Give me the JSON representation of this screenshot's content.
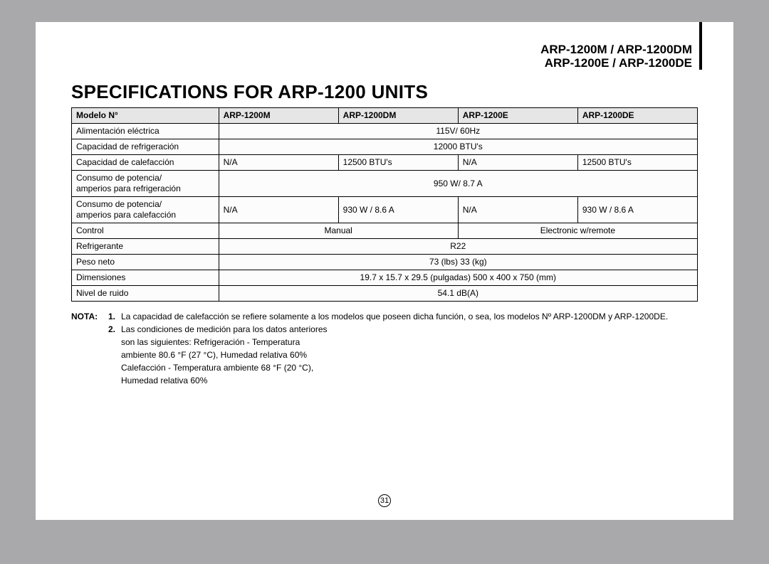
{
  "header": {
    "line1": "ARP-1200M / ARP-1200DM",
    "line2": "ARP-1200E / ARP-1200DE"
  },
  "title": "SPECIFICATIONS FOR ARP-1200 UNITS",
  "table": {
    "columns": [
      "Modelo N°",
      "ARP-1200M",
      "ARP-1200DM",
      "ARP-1200E",
      "ARP-1200DE"
    ],
    "rows": [
      {
        "label": "Alimentación eléctrica",
        "spans": [
          {
            "cols": 4,
            "text": "115V/ 60Hz",
            "align": "center"
          }
        ]
      },
      {
        "label": "Capacidad de refrigeración",
        "spans": [
          {
            "cols": 4,
            "text": "12000 BTU's",
            "align": "center"
          }
        ]
      },
      {
        "label": "Capacidad de calefacción",
        "spans": [
          {
            "cols": 1,
            "text": "N/A"
          },
          {
            "cols": 1,
            "text": "12500  BTU's"
          },
          {
            "cols": 1,
            "text": "N/A"
          },
          {
            "cols": 1,
            "text": "12500 BTU's"
          }
        ]
      },
      {
        "label": "Consumo de potencia/\namperios para refrigeración",
        "spans": [
          {
            "cols": 4,
            "text": "950 W/ 8.7 A",
            "align": "center"
          }
        ]
      },
      {
        "label": "Consumo de potencia/\namperios para calefacción",
        "spans": [
          {
            "cols": 1,
            "text": "N/A"
          },
          {
            "cols": 1,
            "text": "930 W / 8.6 A"
          },
          {
            "cols": 1,
            "text": "N/A"
          },
          {
            "cols": 1,
            "text": "930 W / 8.6 A"
          }
        ]
      },
      {
        "label": "Control",
        "spans": [
          {
            "cols": 2,
            "text": "Manual",
            "align": "center"
          },
          {
            "cols": 2,
            "text": "Electronic w/remote",
            "align": "center"
          }
        ]
      },
      {
        "label": "Refrigerante",
        "spans": [
          {
            "cols": 4,
            "text": "R22",
            "align": "center"
          }
        ]
      },
      {
        "label": "Peso neto",
        "spans": [
          {
            "cols": 4,
            "text": "73 (lbs)   33 (kg)",
            "align": "center"
          }
        ]
      },
      {
        "label": "Dimensiones",
        "spans": [
          {
            "cols": 4,
            "text": "19.7 x 15.7 x 29.5 (pulgadas)   500 x 400 x 750 (mm)",
            "align": "center"
          }
        ]
      },
      {
        "label": "Nivel de ruido",
        "spans": [
          {
            "cols": 4,
            "text": "54.1 dB(A)",
            "align": "center"
          }
        ]
      }
    ]
  },
  "notes": {
    "lead": "NOTA:",
    "items": [
      {
        "num": "1.",
        "text": "La capacidad de calefacción se refiere solamente a los modelos que poseen dicha función, o sea, los modelos Nº ARP-1200DM y ARP-1200DE."
      },
      {
        "num": "2.",
        "text": "Las condiciones de medición para los datos anteriores\nson las siguientes: Refrigeración - Temperatura\nambiente 80.6 °F (27 °C), Humedad relativa 60%\nCalefacción - Temperatura ambiente 68 °F (20 °C),\nHumedad relativa 60%"
      }
    ]
  },
  "page_number": "31"
}
